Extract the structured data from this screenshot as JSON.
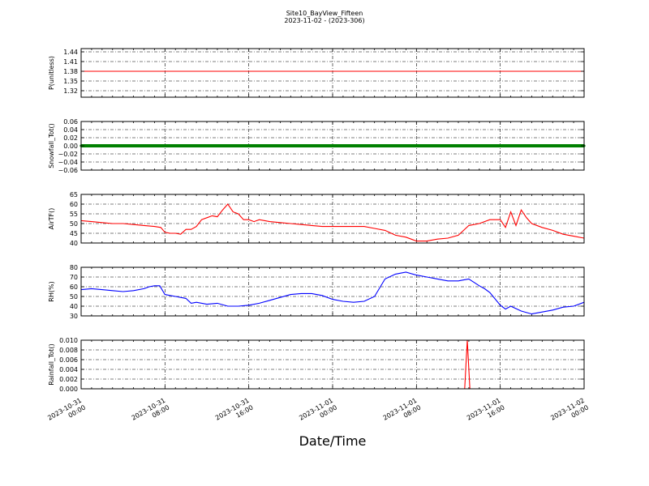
{
  "figure": {
    "title": "Site10_BayView_Fifteen",
    "subtitle": "2023-11-02 - (2023-306)",
    "xlabel": "Date/Time"
  },
  "chart_data": [
    {
      "type": "line",
      "ylabel": "P(unitless)",
      "ylim": [
        1.3,
        1.45
      ],
      "yticks": [
        "1.44",
        "1.41",
        "1.38",
        "1.35",
        "1.32"
      ],
      "ytick_values": [
        1.44,
        1.41,
        1.38,
        1.35,
        1.32
      ],
      "xlim": [
        0,
        48
      ],
      "grid": true,
      "series": [
        {
          "color": "#ff0000",
          "x": [
            0,
            48
          ],
          "values": [
            1.38,
            1.38
          ]
        }
      ]
    },
    {
      "type": "line",
      "ylabel": "Snowfall_Tot()",
      "ylim": [
        -0.06,
        0.06
      ],
      "yticks": [
        "0.06",
        "0.04",
        "0.02",
        "0.00",
        "−0.02",
        "−0.04",
        "−0.06"
      ],
      "ytick_values": [
        0.06,
        0.04,
        0.02,
        0.0,
        -0.02,
        -0.04,
        -0.06
      ],
      "xlim": [
        0,
        48
      ],
      "grid": true,
      "series": [
        {
          "color": "#008000",
          "markers": true,
          "x": [
            0,
            48
          ],
          "values": [
            0.0,
            0.0
          ]
        }
      ]
    },
    {
      "type": "line",
      "ylabel": "AirTF()",
      "ylim": [
        40,
        65
      ],
      "yticks": [
        "65",
        "60",
        "55",
        "50",
        "45",
        "40"
      ],
      "ytick_values": [
        65,
        60,
        55,
        50,
        45,
        40
      ],
      "xlim": [
        0,
        48
      ],
      "grid": true,
      "series": [
        {
          "color": "#ff0000",
          "x": [
            0,
            1,
            2,
            3,
            4,
            5,
            6,
            7,
            7.6,
            8,
            8.5,
            9,
            9.5,
            10,
            10.5,
            11,
            11.5,
            12,
            12.5,
            13,
            13.5,
            14,
            14.5,
            15,
            15.5,
            16,
            16.5,
            17,
            18,
            19,
            20,
            21,
            22,
            23,
            24,
            25,
            26,
            27,
            28,
            29,
            30,
            31,
            32,
            33,
            34,
            35,
            36,
            37,
            38,
            39,
            40,
            40.5,
            41,
            41.5,
            42,
            42.5,
            43,
            44,
            45,
            46,
            47,
            48
          ],
          "values": [
            51.5,
            51,
            50.5,
            50,
            50,
            49.5,
            49,
            48.5,
            48,
            45.5,
            45,
            45,
            44.5,
            47,
            47,
            48.5,
            52,
            53,
            54,
            53.5,
            57,
            60,
            56,
            55,
            52,
            52,
            51,
            52,
            51,
            50.5,
            50,
            49.5,
            49,
            48.5,
            48.5,
            48.5,
            48.5,
            48.5,
            47.5,
            46.5,
            44,
            43,
            41,
            41,
            42,
            42.5,
            44,
            49,
            50,
            52,
            52,
            48,
            56,
            49,
            57,
            53,
            50,
            48,
            46.5,
            44.5,
            43.5,
            42.5
          ]
        }
      ]
    },
    {
      "type": "line",
      "ylabel": "RH(%)",
      "ylim": [
        30,
        80
      ],
      "yticks": [
        "80",
        "70",
        "60",
        "50",
        "40",
        "30"
      ],
      "ytick_values": [
        80,
        70,
        60,
        50,
        40,
        30
      ],
      "xlim": [
        0,
        48
      ],
      "grid": true,
      "series": [
        {
          "color": "#0000ff",
          "x": [
            0,
            1,
            2,
            3,
            4,
            5,
            6,
            6.5,
            7,
            7.5,
            8,
            9,
            10,
            10.5,
            11,
            12,
            13,
            14,
            15,
            16,
            17,
            18,
            19,
            20,
            21,
            22,
            23,
            24,
            25,
            26,
            27,
            28,
            29,
            30,
            31,
            32,
            33,
            34,
            35,
            36,
            36.5,
            37,
            38,
            38.5,
            39,
            40,
            40.5,
            41,
            42,
            43,
            44,
            45,
            46,
            47,
            48
          ],
          "values": [
            57,
            58,
            57,
            56,
            55,
            56,
            58,
            60,
            61,
            61,
            52,
            50,
            48,
            43,
            44,
            42,
            43,
            40,
            40,
            41,
            43,
            46,
            49,
            52,
            53,
            53,
            51,
            47,
            45,
            44,
            45,
            50,
            68,
            73,
            75,
            72,
            70,
            68,
            66,
            66,
            67,
            68,
            61,
            58,
            54,
            41,
            37,
            40,
            35,
            32,
            34,
            36,
            39,
            40,
            44
          ]
        }
      ]
    },
    {
      "type": "line",
      "ylabel": "Rainfall_Tot()",
      "ylim": [
        0,
        0.01
      ],
      "yticks": [
        "0.010",
        "0.008",
        "0.006",
        "0.004",
        "0.002",
        "0.000"
      ],
      "ytick_values": [
        0.01,
        0.008,
        0.006,
        0.004,
        0.002,
        0.0
      ],
      "xlim": [
        0,
        48
      ],
      "grid": true,
      "series": [
        {
          "color": "#ff0000",
          "x": [
            0,
            36.6,
            36.85,
            37.1,
            48
          ],
          "values": [
            0,
            0,
            0.01,
            0,
            0
          ]
        }
      ]
    }
  ],
  "xticks": [
    {
      "v": 0,
      "line1": "2023-10-31",
      "line2": "00:00"
    },
    {
      "v": 8,
      "line1": "2023-10-31",
      "line2": "08:00"
    },
    {
      "v": 16,
      "line1": "2023-10-31",
      "line2": "16:00"
    },
    {
      "v": 24,
      "line1": "2023-11-01",
      "line2": "00:00"
    },
    {
      "v": 32,
      "line1": "2023-11-01",
      "line2": "08:00"
    },
    {
      "v": 40,
      "line1": "2023-11-01",
      "line2": "16:00"
    },
    {
      "v": 48,
      "line1": "2023-11-02",
      "line2": "00:00"
    }
  ]
}
